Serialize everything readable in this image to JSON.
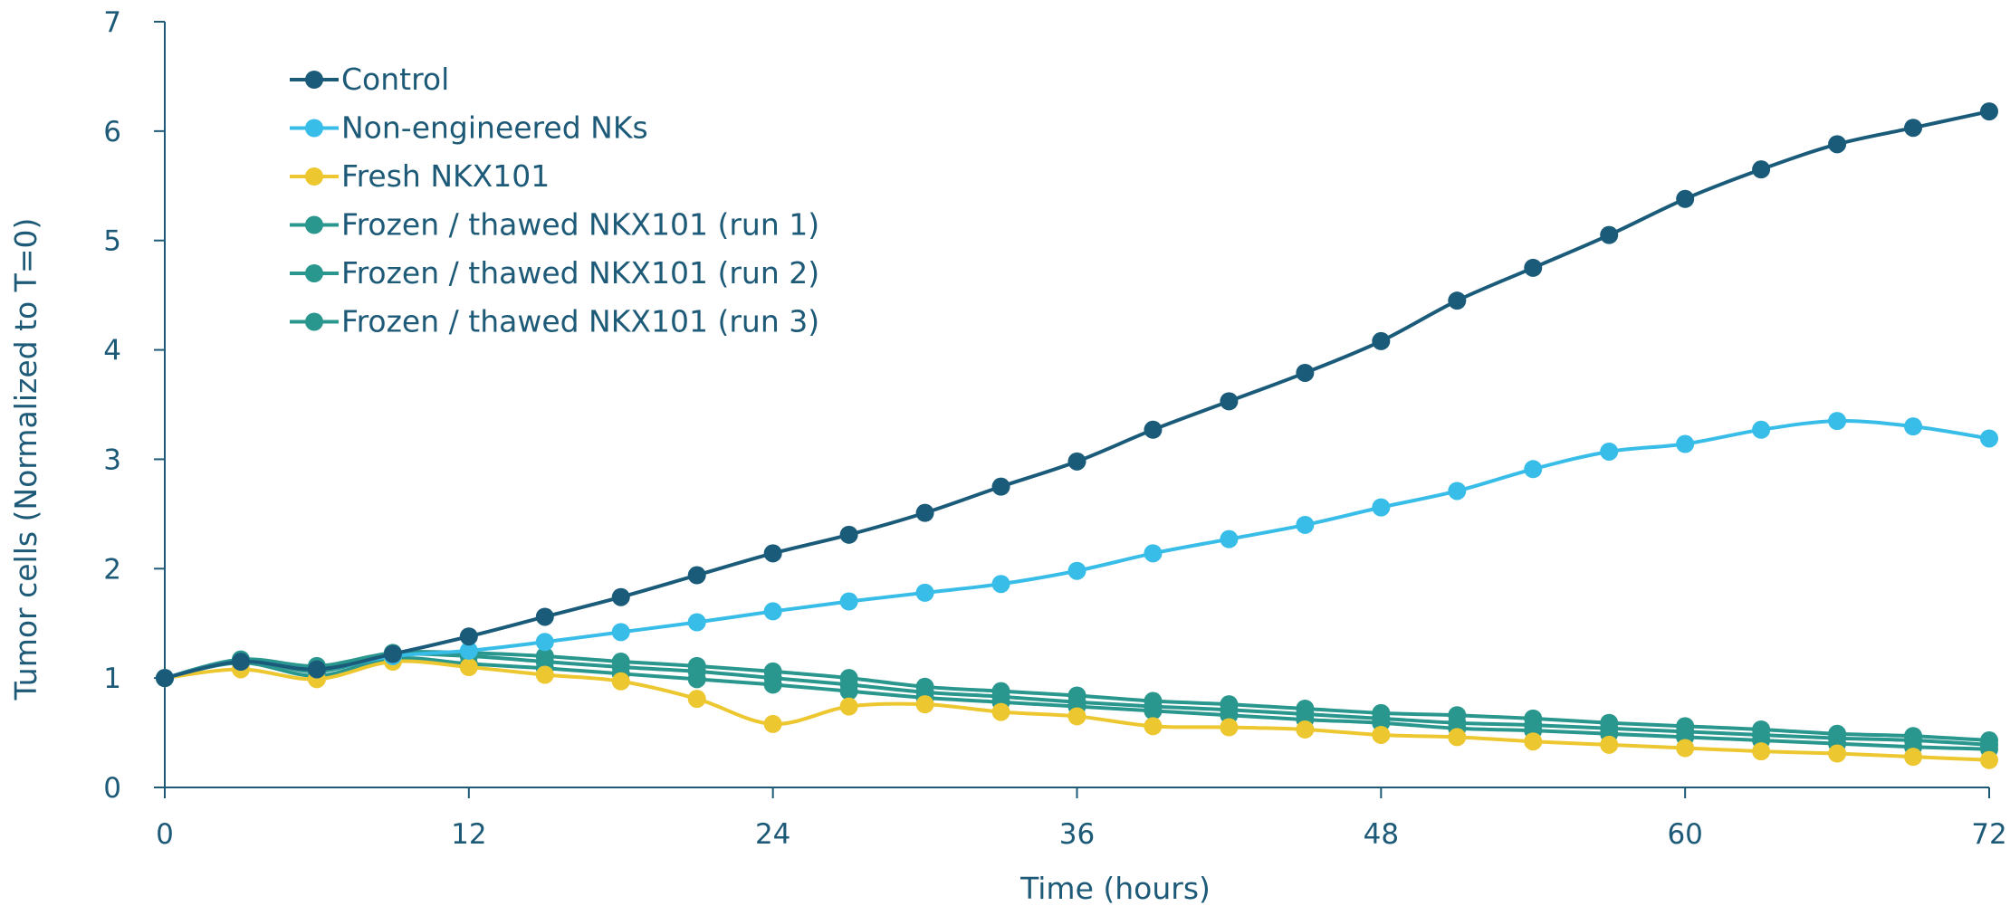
{
  "chart_data": {
    "type": "line",
    "xlabel": "Time (hours)",
    "ylabel": "Tumor cells (Normalized to T=0)",
    "xlim": [
      0,
      72
    ],
    "ylim": [
      0,
      7
    ],
    "x_ticks": [
      0,
      12,
      24,
      36,
      48,
      60,
      72
    ],
    "y_ticks": [
      0,
      1,
      2,
      3,
      4,
      5,
      6,
      7
    ],
    "x_tick_labels": [
      "0",
      "12",
      "24",
      "36",
      "48",
      "60",
      "72"
    ],
    "y_tick_labels": [
      "0",
      "1",
      "2",
      "3",
      "4",
      "5",
      "6",
      "7"
    ],
    "grid": false,
    "legend_position": "top-left",
    "x": [
      0,
      3,
      6,
      9,
      12,
      15,
      18,
      21,
      24,
      27,
      30,
      33,
      36,
      39,
      42,
      45,
      48,
      51,
      54,
      57,
      60,
      63,
      66,
      69,
      72
    ],
    "series": [
      {
        "name": "Control",
        "color": "#1b5b7a",
        "values": [
          1.0,
          1.15,
          1.08,
          1.22,
          1.38,
          1.56,
          1.74,
          1.94,
          2.14,
          2.31,
          2.51,
          2.75,
          2.98,
          3.27,
          3.53,
          3.79,
          4.08,
          4.45,
          4.75,
          5.05,
          5.38,
          5.65,
          5.88,
          6.03,
          6.18
        ]
      },
      {
        "name": "Non-engineered NKs",
        "color": "#37bde8",
        "values": [
          1.0,
          1.15,
          1.08,
          1.2,
          1.25,
          1.33,
          1.42,
          1.51,
          1.61,
          1.7,
          1.78,
          1.86,
          1.98,
          2.14,
          2.27,
          2.4,
          2.56,
          2.71,
          2.91,
          3.07,
          3.14,
          3.27,
          3.35,
          3.3,
          3.19
        ]
      },
      {
        "name": "Fresh NKX101",
        "color": "#ecc730",
        "values": [
          1.0,
          1.08,
          0.99,
          1.15,
          1.1,
          1.03,
          0.97,
          0.81,
          0.58,
          0.74,
          0.76,
          0.69,
          0.65,
          0.56,
          0.55,
          0.53,
          0.48,
          0.46,
          0.42,
          0.39,
          0.36,
          0.33,
          0.31,
          0.28,
          0.25
        ]
      },
      {
        "name": "Frozen / thawed NKX101 (run 1)",
        "color": "#2a978f",
        "values": [
          1.0,
          1.14,
          1.02,
          1.18,
          1.13,
          1.09,
          1.04,
          0.99,
          0.94,
          0.88,
          0.82,
          0.78,
          0.74,
          0.7,
          0.66,
          0.62,
          0.59,
          0.54,
          0.52,
          0.49,
          0.46,
          0.43,
          0.4,
          0.37,
          0.35
        ]
      },
      {
        "name": "Frozen / thawed NKX101 (run 2)",
        "color": "#2a978f",
        "values": [
          1.0,
          1.16,
          1.06,
          1.21,
          1.2,
          1.15,
          1.1,
          1.06,
          1.0,
          0.94,
          0.87,
          0.83,
          0.78,
          0.74,
          0.71,
          0.67,
          0.63,
          0.59,
          0.57,
          0.54,
          0.51,
          0.48,
          0.45,
          0.43,
          0.39
        ]
      },
      {
        "name": "Frozen / thawed NKX101 (run 3)",
        "color": "#2a978f",
        "values": [
          1.0,
          1.17,
          1.11,
          1.23,
          1.23,
          1.2,
          1.15,
          1.11,
          1.06,
          1.0,
          0.92,
          0.88,
          0.84,
          0.79,
          0.76,
          0.72,
          0.68,
          0.66,
          0.63,
          0.59,
          0.56,
          0.53,
          0.49,
          0.47,
          0.43
        ]
      }
    ]
  }
}
